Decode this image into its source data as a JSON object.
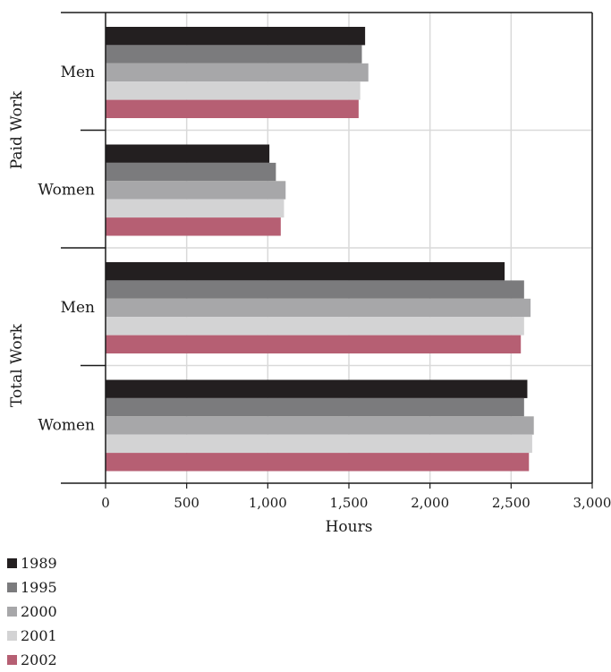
{
  "chart_data": {
    "type": "bar",
    "orientation": "horizontal",
    "xlabel": "Hours",
    "xlim": [
      0,
      3000
    ],
    "xticks": [
      0,
      500,
      1000,
      1500,
      2000,
      2500,
      3000
    ],
    "xtick_labels": [
      "0",
      "500",
      "1,000",
      "1,500",
      "2,000",
      "2,500",
      "3,000"
    ],
    "grid": true,
    "legend_position": "bottom-left",
    "groups": [
      {
        "label": "Paid Work",
        "categories": [
          "Men",
          "Women"
        ]
      },
      {
        "label": "Total Work",
        "categories": [
          "Men",
          "Women"
        ]
      }
    ],
    "categories": [
      "Men",
      "Women",
      "Men",
      "Women"
    ],
    "series": [
      {
        "name": "1989",
        "color": "#231f20",
        "values": [
          1600,
          1010,
          2460,
          2600
        ]
      },
      {
        "name": "1995",
        "color": "#7b7b7d",
        "values": [
          1580,
          1050,
          2580,
          2580
        ]
      },
      {
        "name": "2000",
        "color": "#a7a7a9",
        "values": [
          1620,
          1110,
          2620,
          2640
        ]
      },
      {
        "name": "2001",
        "color": "#d3d3d4",
        "values": [
          1570,
          1100,
          2580,
          2630
        ]
      },
      {
        "name": "2002",
        "color": "#b65f73",
        "values": [
          1560,
          1080,
          2560,
          2610
        ]
      }
    ]
  }
}
